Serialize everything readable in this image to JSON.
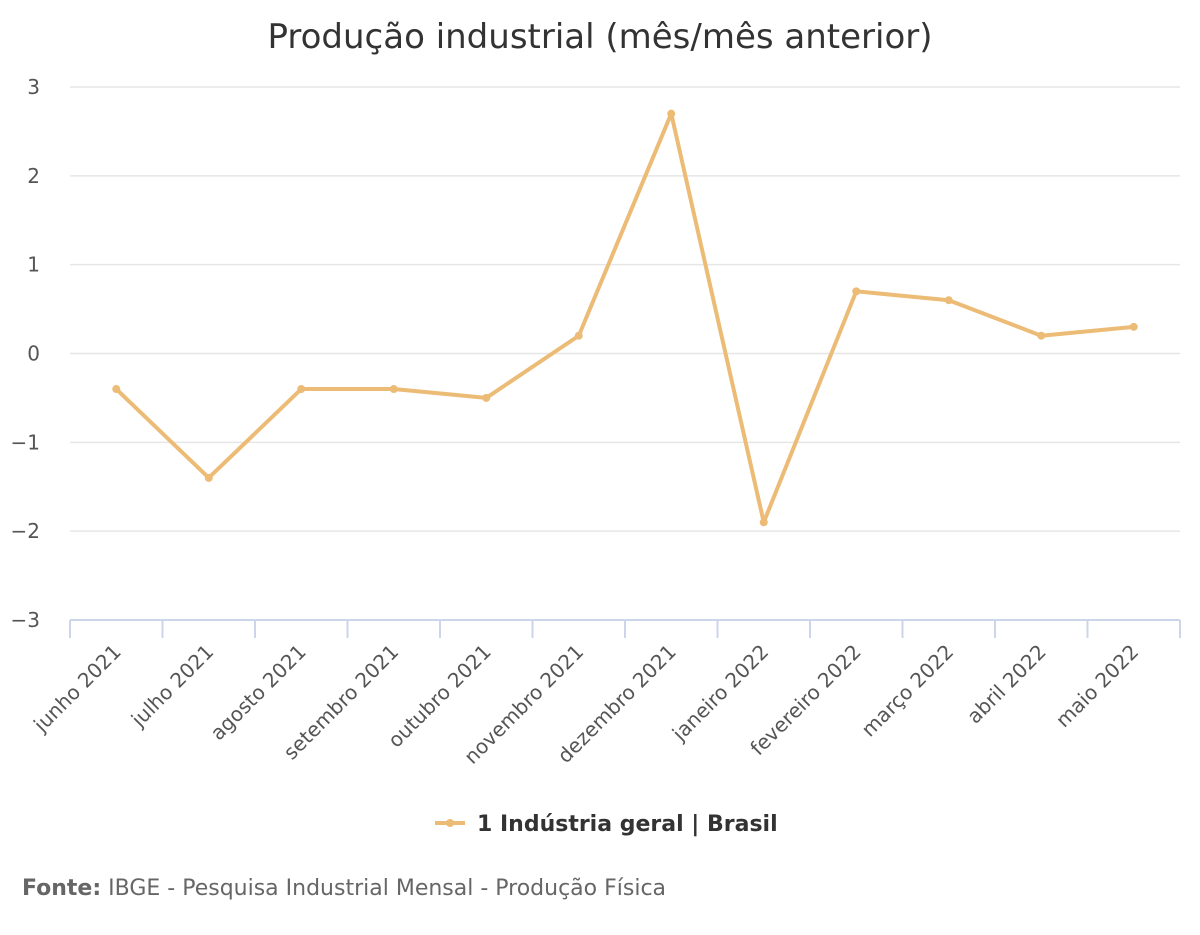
{
  "chart_data": {
    "type": "line",
    "title": "Produção industrial (mês/mês anterior)",
    "categories": [
      "junho 2021",
      "julho 2021",
      "agosto 2021",
      "setembro 2021",
      "outubro 2021",
      "novembro 2021",
      "dezembro 2021",
      "janeiro 2022",
      "fevereiro 2022",
      "março 2022",
      "abril 2022",
      "maio 2022"
    ],
    "series": [
      {
        "name": "1 Indústria geral | Brasil",
        "color": "#ecbb76",
        "values": [
          -0.4,
          -1.4,
          -0.4,
          -0.4,
          -0.5,
          0.2,
          2.7,
          -1.9,
          0.7,
          0.6,
          0.2,
          0.3
        ]
      }
    ],
    "ylim": [
      -3,
      3
    ],
    "yticks": [
      "3",
      "2",
      "1",
      "0",
      "−1",
      "−2",
      "−3"
    ],
    "ytick_values": [
      3,
      2,
      1,
      0,
      -1,
      -2,
      -3
    ],
    "grid": true,
    "legend_position": "bottom-center"
  },
  "source": {
    "label": "Fonte:",
    "text": "IBGE - Pesquisa Industrial Mensal - Produção Física"
  },
  "colors": {
    "grid": "#e6e6e6",
    "axis": "#ccd6eb"
  }
}
